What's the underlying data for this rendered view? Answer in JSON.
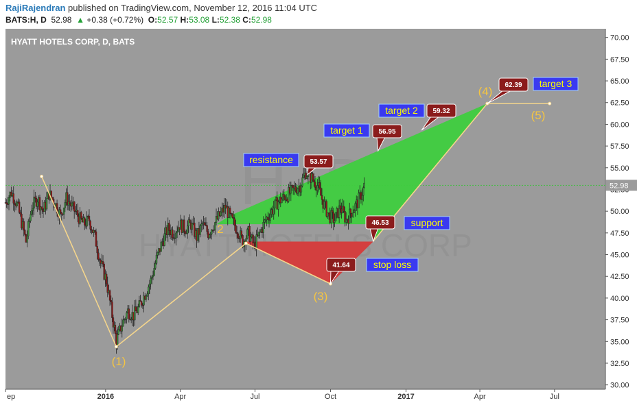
{
  "header": {
    "username": "RajiRajendran",
    "published_text": " published on TradingView.com, November 12, 2016 11:04 UTC",
    "symbol": "BATS:H, D",
    "last": "52.98",
    "arrow": "▲",
    "change": "+0.38 (+0.72%)",
    "o_label": "O:",
    "o_value": "52.57",
    "h_label": "H:",
    "h_value": "53.08",
    "l_label": "L:",
    "l_value": "52.38",
    "c_label": "C:",
    "c_value": "52.98"
  },
  "chart_data": {
    "type": "candlestick",
    "title": "HYATT HOTELS CORP, D, BATS",
    "watermark_symbol": "H, D",
    "watermark_name": "HYATT HOTELS CORP",
    "x_tick_labels": [
      "ep",
      "2016",
      "Apr",
      "Jul",
      "Oct",
      "2017",
      "Apr",
      "Jul"
    ],
    "y_ticks": [
      30,
      32.5,
      35,
      37.5,
      40,
      42.5,
      45,
      47.5,
      50,
      52.5,
      55,
      57.5,
      60,
      62.5,
      65,
      67.5,
      70
    ],
    "y_tick_labels": [
      "30.00",
      "32.50",
      "35.00",
      "37.50",
      "40.00",
      "42.50",
      "45.00",
      "47.50",
      "50.00",
      "52.50",
      "55.00",
      "57.50",
      "60.00",
      "62.50",
      "65.00",
      "67.50",
      "70.00"
    ],
    "ylim": [
      29.5,
      71
    ],
    "x_range": [
      "2015-09-01",
      "2017-09-01"
    ],
    "last_price_label": "52.98",
    "last_price": 52.98,
    "price_series": [
      [
        "2015-09-01",
        51.0
      ],
      [
        "2015-09-08",
        52.2
      ],
      [
        "2015-09-15",
        50.8
      ],
      [
        "2015-09-22",
        48.2
      ],
      [
        "2015-09-26",
        46.5
      ],
      [
        "2015-10-03",
        50.5
      ],
      [
        "2015-10-10",
        51.5
      ],
      [
        "2015-10-17",
        50.0
      ],
      [
        "2015-10-24",
        52.0
      ],
      [
        "2015-10-31",
        51.0
      ],
      [
        "2015-11-07",
        49.5
      ],
      [
        "2015-11-14",
        51.5
      ],
      [
        "2015-11-21",
        50.5
      ],
      [
        "2015-11-28",
        49.5
      ],
      [
        "2015-12-05",
        48.5
      ],
      [
        "2015-12-12",
        49.0
      ],
      [
        "2015-12-19",
        47.0
      ],
      [
        "2015-12-26",
        44.0
      ],
      [
        "2016-01-02",
        42.0
      ],
      [
        "2016-01-09",
        38.0
      ],
      [
        "2016-01-14",
        35.0
      ],
      [
        "2016-01-21",
        37.0
      ],
      [
        "2016-01-28",
        38.5
      ],
      [
        "2016-02-04",
        38.0
      ],
      [
        "2016-02-11",
        39.0
      ],
      [
        "2016-02-18",
        40.5
      ],
      [
        "2016-02-25",
        42.0
      ],
      [
        "2016-03-03",
        44.5
      ],
      [
        "2016-03-10",
        46.5
      ],
      [
        "2016-03-17",
        48.0
      ],
      [
        "2016-03-24",
        47.5
      ],
      [
        "2016-03-31",
        48.5
      ],
      [
        "2016-04-07",
        48.0
      ],
      [
        "2016-04-14",
        48.5
      ],
      [
        "2016-04-21",
        47.0
      ],
      [
        "2016-04-28",
        48.5
      ],
      [
        "2016-05-05",
        47.5
      ],
      [
        "2016-05-12",
        48.5
      ],
      [
        "2016-05-19",
        49.5
      ],
      [
        "2016-05-26",
        50.5
      ],
      [
        "2016-06-02",
        49.0
      ],
      [
        "2016-06-09",
        48.0
      ],
      [
        "2016-06-16",
        46.5
      ],
      [
        "2016-06-23",
        47.5
      ],
      [
        "2016-06-30",
        46.0
      ],
      [
        "2016-07-07",
        47.5
      ],
      [
        "2016-07-14",
        49.0
      ],
      [
        "2016-07-21",
        50.0
      ],
      [
        "2016-07-28",
        51.0
      ],
      [
        "2016-08-04",
        51.5
      ],
      [
        "2016-08-11",
        52.0
      ],
      [
        "2016-08-18",
        52.5
      ],
      [
        "2016-08-25",
        53.0
      ],
      [
        "2016-09-01",
        54.5
      ],
      [
        "2016-09-08",
        53.8
      ],
      [
        "2016-09-15",
        53.0
      ],
      [
        "2016-09-22",
        51.0
      ],
      [
        "2016-09-29",
        49.5
      ],
      [
        "2016-10-06",
        49.0
      ],
      [
        "2016-10-13",
        50.5
      ],
      [
        "2016-10-20",
        49.0
      ],
      [
        "2016-10-27",
        50.0
      ],
      [
        "2016-11-03",
        51.0
      ],
      [
        "2016-11-10",
        52.5
      ],
      [
        "2016-11-11",
        52.98
      ]
    ],
    "wave_points": [
      {
        "label": "(1)",
        "date": "2015-10-15",
        "price": 54.0
      },
      {
        "label": "",
        "date": "2016-01-14",
        "price": 34.4
      },
      {
        "label": "2",
        "date": "2016-06-20",
        "price": 46.3
      },
      {
        "label": "(3)",
        "date": "2016-10-01",
        "price": 41.64
      },
      {
        "label": "(4)",
        "date": "2017-04-10",
        "price": 62.39
      },
      {
        "label": "(5)",
        "date": "2017-06-25",
        "price": 62.39
      }
    ],
    "wave_labels": [
      "(1)",
      "2",
      "(3)",
      "(4)",
      "(5)"
    ],
    "support_line": [
      [
        "2016-11-22",
        46.53
      ],
      [
        "2017-04-10",
        62.39
      ]
    ],
    "resistance_line": [
      [
        "2016-06-01",
        49.5
      ],
      [
        "2016-11-28",
        56.95
      ],
      [
        "2017-04-10",
        62.39
      ]
    ],
    "horizontal_support": {
      "price": 48.5,
      "from": "2016-05-15",
      "to": "2016-11-22"
    },
    "horizontal_stop": {
      "price": 46.5,
      "from": "2016-06-20",
      "to": "2016-11-22"
    },
    "annotations": [
      {
        "label": "resistance",
        "value": "53.57",
        "date": "2016-09-03",
        "price": 54.2
      },
      {
        "label": "target 1",
        "value": "56.95",
        "date": "2016-11-28",
        "price": 56.95
      },
      {
        "label": "target 2",
        "value": "59.32",
        "date": "2017-01-20",
        "price": 59.32
      },
      {
        "label": "target 3",
        "value": "62.39",
        "date": "2017-04-10",
        "price": 62.39
      },
      {
        "label": "support",
        "value": "46.53",
        "date": "2016-11-22",
        "price": 46.53
      },
      {
        "label": "stop loss",
        "value": "41.64",
        "date": "2016-10-01",
        "price": 41.64
      }
    ],
    "colors": {
      "background": "#9b9b9b",
      "bullish_candle": "#3c8c3c",
      "bearish_candle": "#8b1a1a",
      "green_zone": "#3fce3f",
      "red_zone": "#d63a3a",
      "wave_line": "#f4d58c",
      "wave_label": "#f5c542",
      "value_box": "#8b1c1c",
      "label_box": "#3a3af0",
      "label_text": "#ffff00"
    }
  }
}
